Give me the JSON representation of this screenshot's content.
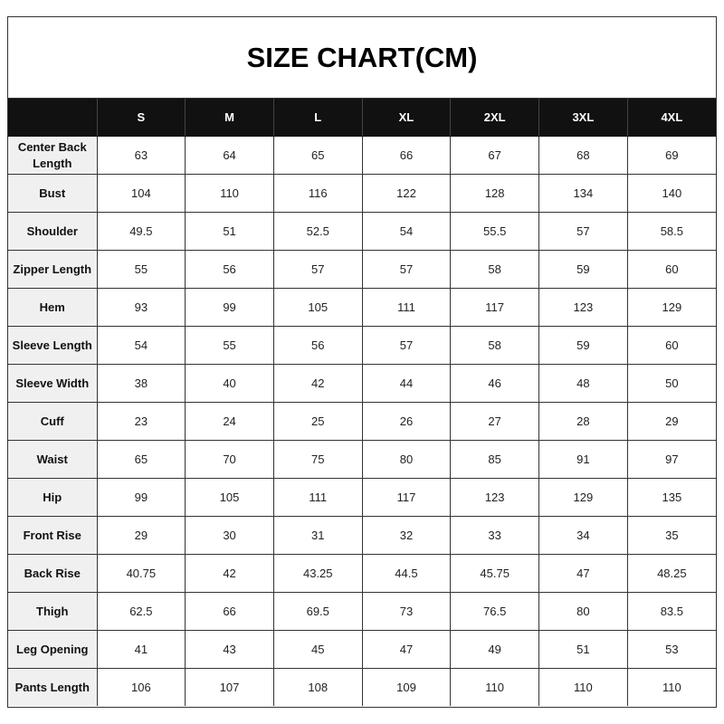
{
  "title": "SIZE CHART(CM)",
  "colors": {
    "header_bg": "#111111",
    "label_bg": "#f0f0f0"
  },
  "table": {
    "corner": "",
    "sizes": [
      "S",
      "M",
      "L",
      "XL",
      "2XL",
      "3XL",
      "4XL"
    ],
    "rows": [
      {
        "label": "Center Back Length",
        "values": [
          "63",
          "64",
          "65",
          "66",
          "67",
          "68",
          "69"
        ]
      },
      {
        "label": "Bust",
        "values": [
          "104",
          "110",
          "116",
          "122",
          "128",
          "134",
          "140"
        ]
      },
      {
        "label": "Shoulder",
        "values": [
          "49.5",
          "51",
          "52.5",
          "54",
          "55.5",
          "57",
          "58.5"
        ]
      },
      {
        "label": "Zipper Length",
        "values": [
          "55",
          "56",
          "57",
          "57",
          "58",
          "59",
          "60"
        ]
      },
      {
        "label": "Hem",
        "values": [
          "93",
          "99",
          "105",
          "111",
          "117",
          "123",
          "129"
        ]
      },
      {
        "label": "Sleeve Length",
        "values": [
          "54",
          "55",
          "56",
          "57",
          "58",
          "59",
          "60"
        ]
      },
      {
        "label": "Sleeve Width",
        "values": [
          "38",
          "40",
          "42",
          "44",
          "46",
          "48",
          "50"
        ]
      },
      {
        "label": "Cuff",
        "values": [
          "23",
          "24",
          "25",
          "26",
          "27",
          "28",
          "29"
        ]
      },
      {
        "label": "Waist",
        "values": [
          "65",
          "70",
          "75",
          "80",
          "85",
          "91",
          "97"
        ]
      },
      {
        "label": "Hip",
        "values": [
          "99",
          "105",
          "111",
          "117",
          "123",
          "129",
          "135"
        ]
      },
      {
        "label": "Front Rise",
        "values": [
          "29",
          "30",
          "31",
          "32",
          "33",
          "34",
          "35"
        ]
      },
      {
        "label": "Back Rise",
        "values": [
          "40.75",
          "42",
          "43.25",
          "44.5",
          "45.75",
          "47",
          "48.25"
        ]
      },
      {
        "label": "Thigh",
        "values": [
          "62.5",
          "66",
          "69.5",
          "73",
          "76.5",
          "80",
          "83.5"
        ]
      },
      {
        "label": "Leg Opening",
        "values": [
          "41",
          "43",
          "45",
          "47",
          "49",
          "51",
          "53"
        ]
      },
      {
        "label": "Pants Length",
        "values": [
          "106",
          "107",
          "108",
          "109",
          "110",
          "110",
          "110"
        ]
      }
    ]
  }
}
